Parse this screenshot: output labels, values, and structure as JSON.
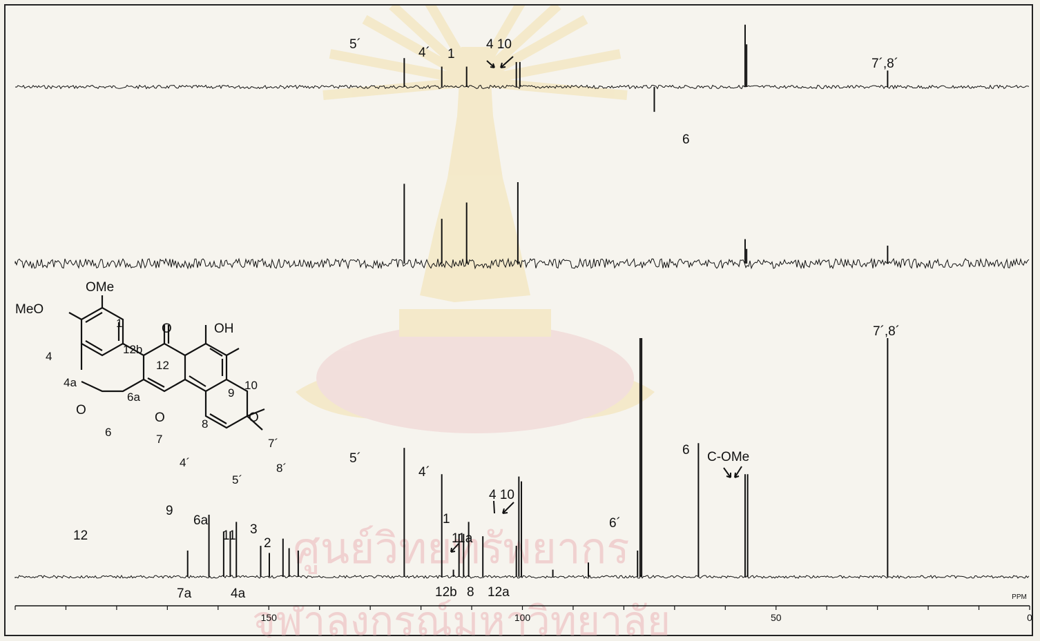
{
  "watermark": {
    "text_line1": "ศูนย์วิทยทรัพยากร",
    "text_line2": "จุฬาลงกรณ์มหาวิทยาลัย"
  },
  "colors": {
    "ink": "#111111",
    "paper": "#f6f4ee",
    "watermark": "#f3e1ae",
    "watermark_text": "#efc9c9"
  },
  "chart_data": [
    {
      "type": "line",
      "role": "DEPT-135",
      "xlim": [
        0,
        200
      ],
      "x_reversed": true,
      "peaks": [
        {
          "ppm": 123.3,
          "intensity": 0.44,
          "label": "5´"
        },
        {
          "ppm": 115.9,
          "intensity": 0.31,
          "label": "4´"
        },
        {
          "ppm": 111.0,
          "intensity": 0.31,
          "label": "1"
        },
        {
          "ppm": 101.2,
          "intensity": 0.38,
          "label": "4"
        },
        {
          "ppm": 100.5,
          "intensity": 0.38,
          "label": "10"
        },
        {
          "ppm": 74.0,
          "intensity": -0.38,
          "label": "6"
        },
        {
          "ppm": 56.1,
          "intensity": 0.95,
          "label": ""
        },
        {
          "ppm": 55.8,
          "intensity": 0.65,
          "label": ""
        },
        {
          "ppm": 28.0,
          "intensity": 0.25,
          "label": "7´,8´"
        }
      ]
    },
    {
      "type": "line",
      "role": "DEPT-90",
      "xlim": [
        0,
        200
      ],
      "x_reversed": true,
      "peaks": [
        {
          "ppm": 123.3,
          "intensity": 0.98
        },
        {
          "ppm": 115.9,
          "intensity": 0.55
        },
        {
          "ppm": 111.0,
          "intensity": 0.75
        },
        {
          "ppm": 100.9,
          "intensity": 1.0
        },
        {
          "ppm": 56.1,
          "intensity": 0.3
        },
        {
          "ppm": 55.8,
          "intensity": 0.18
        },
        {
          "ppm": 28.0,
          "intensity": 0.22
        }
      ]
    },
    {
      "type": "line",
      "role": "13C broadband decoupled",
      "xlim": [
        0,
        200
      ],
      "x_reversed": true,
      "ticks": [
        0,
        50,
        100,
        150
      ],
      "x_unit": "PPM",
      "peaks": [
        {
          "ppm": 166.0,
          "intensity": 0.11,
          "label": "12"
        },
        {
          "ppm": 161.8,
          "intensity": 0.26,
          "label": "9"
        },
        {
          "ppm": 158.9,
          "intensity": 0.19,
          "label": "7a"
        },
        {
          "ppm": 157.6,
          "intensity": 0.19,
          "label": ""
        },
        {
          "ppm": 156.4,
          "intensity": 0.23,
          "label": "6a"
        },
        {
          "ppm": 151.6,
          "intensity": 0.13,
          "label": "11"
        },
        {
          "ppm": 149.9,
          "intensity": 0.1,
          "label": "4a"
        },
        {
          "ppm": 147.2,
          "intensity": 0.16,
          "label": "3"
        },
        {
          "ppm": 146.0,
          "intensity": 0.12,
          "label": ""
        },
        {
          "ppm": 144.2,
          "intensity": 0.11,
          "label": "2"
        },
        {
          "ppm": 123.3,
          "intensity": 0.54,
          "label": "5´"
        },
        {
          "ppm": 115.9,
          "intensity": 0.43,
          "label": "4´"
        },
        {
          "ppm": 113.6,
          "intensity": 0.03,
          "label": ""
        },
        {
          "ppm": 112.5,
          "intensity": 0.18,
          "label": "12b"
        },
        {
          "ppm": 111.6,
          "intensity": 0.18,
          "label": ""
        },
        {
          "ppm": 110.6,
          "intensity": 0.23,
          "label": "1"
        },
        {
          "ppm": 107.8,
          "intensity": 0.17,
          "label": "8"
        },
        {
          "ppm": 101.2,
          "intensity": 0.13,
          "label": "12a"
        },
        {
          "ppm": 100.7,
          "intensity": 0.42,
          "label": "4"
        },
        {
          "ppm": 100.2,
          "intensity": 0.4,
          "label": "10"
        },
        {
          "ppm": 94.0,
          "intensity": 0.03,
          "label": ""
        },
        {
          "ppm": 87.0,
          "intensity": 0.06,
          "label": ""
        },
        {
          "ppm": 77.3,
          "intensity": 0.11,
          "label": "6´"
        },
        {
          "ppm": 76.8,
          "intensity": 1.0,
          "label": ""
        },
        {
          "ppm": 76.5,
          "intensity": 1.0,
          "label": ""
        },
        {
          "ppm": 65.3,
          "intensity": 0.56,
          "label": "6"
        },
        {
          "ppm": 56.1,
          "intensity": 0.43,
          "label": ""
        },
        {
          "ppm": 55.6,
          "intensity": 0.43,
          "label": ""
        },
        {
          "ppm": 28.0,
          "intensity": 1.0,
          "label": "7´,8´"
        }
      ]
    }
  ],
  "annotations": {
    "top_4_10": "4 10",
    "mid_4_10": "4 10",
    "c_ome": "C-OMe",
    "mid_12b": "12b",
    "mid_8": "8",
    "mid_12a": "12a",
    "mid_11a": "11a",
    "top_78": "7´,8´"
  },
  "structure": {
    "labels": [
      "OMe",
      "MeO",
      "1",
      "O",
      "OH",
      "12b",
      "4",
      "12",
      "10",
      "4a",
      "9",
      "O",
      "6a",
      "O",
      "O",
      "6",
      "7",
      "8",
      "7´",
      "4´",
      "8´",
      "5´"
    ]
  },
  "axis": {
    "unit": "PPM",
    "ticks": [
      "150",
      "100",
      "50",
      "0"
    ]
  }
}
